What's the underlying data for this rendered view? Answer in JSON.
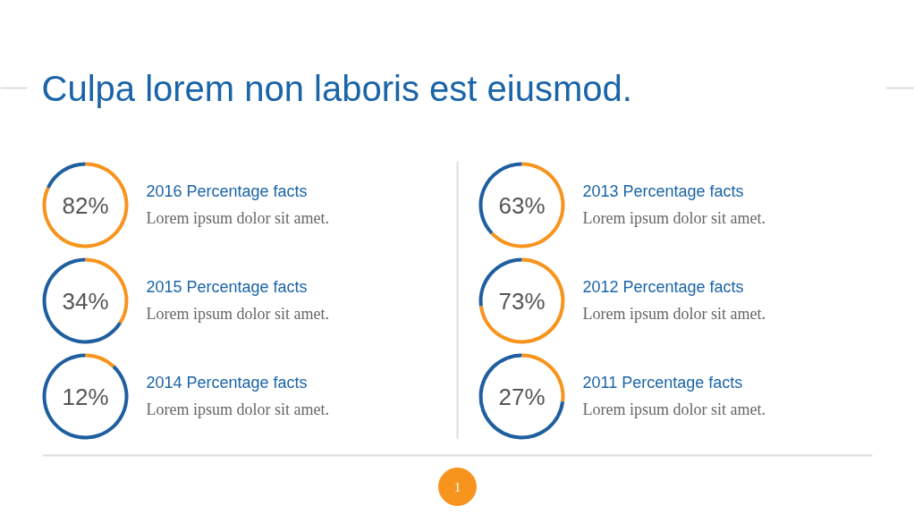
{
  "chart_data": [
    {
      "type": "other",
      "title": "Culpa lorem non laboris est eiusmod.",
      "annotations": [
        "1"
      ]
    },
    {
      "type": "donut",
      "title": "2016 Percentage facts",
      "subtitle": "Lorem ipsum dolor sit amet.",
      "categories": [
        null,
        null
      ],
      "values": [
        82,
        18
      ],
      "colors": [
        "#f7941d",
        "#1f5fa0"
      ],
      "annotations": [
        "82%"
      ]
    },
    {
      "type": "donut",
      "title": "2015 Percentage facts",
      "subtitle": "Lorem ipsum dolor sit amet.",
      "categories": [
        null,
        null
      ],
      "values": [
        34,
        66
      ],
      "colors": [
        "#f7941d",
        "#1f5fa0"
      ],
      "annotations": [
        "34%"
      ]
    },
    {
      "type": "donut",
      "title": "2014 Percentage facts",
      "subtitle": "Lorem ipsum dolor sit amet.",
      "categories": [
        null,
        null
      ],
      "values": [
        12,
        88
      ],
      "colors": [
        "#f7941d",
        "#1f5fa0"
      ],
      "annotations": [
        "12%"
      ]
    },
    {
      "type": "donut",
      "title": "2013 Percentage facts",
      "subtitle": "Lorem ipsum dolor sit amet.",
      "categories": [
        null,
        null
      ],
      "values": [
        63,
        37
      ],
      "colors": [
        "#f7941d",
        "#1f5fa0"
      ],
      "annotations": [
        "63%"
      ]
    },
    {
      "type": "donut",
      "title": "2012 Percentage facts",
      "subtitle": "Lorem ipsum dolor sit amet.",
      "categories": [
        null,
        null
      ],
      "values": [
        73,
        27
      ],
      "colors": [
        "#f7941d",
        "#1f5fa0"
      ],
      "annotations": [
        "73%"
      ]
    },
    {
      "type": "donut",
      "title": "2011 Percentage facts",
      "subtitle": "Lorem ipsum dolor sit amet.",
      "categories": [
        null,
        null
      ],
      "values": [
        27,
        73
      ],
      "colors": [
        "#f7941d",
        "#1f5fa0"
      ],
      "annotations": [
        "27%"
      ]
    }
  ]
}
